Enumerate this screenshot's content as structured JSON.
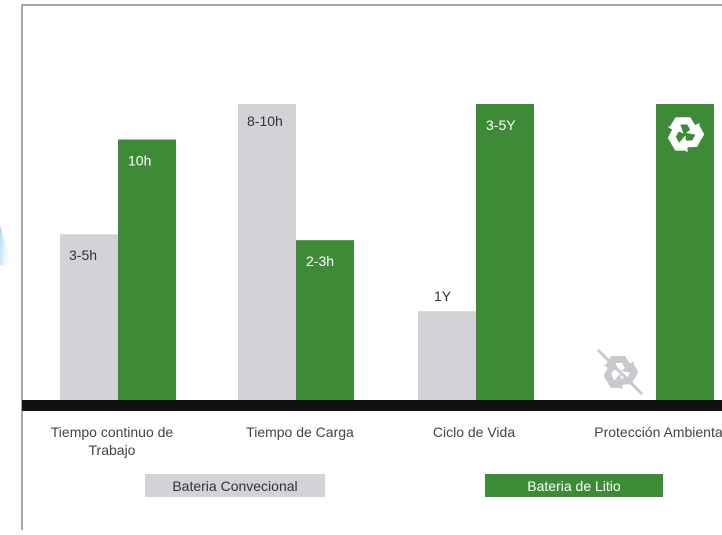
{
  "chart_data": {
    "type": "bar",
    "categories": [
      [
        "Tiempo continuo de",
        "Trabajo"
      ],
      [
        "Tiempo de Carga"
      ],
      [
        "Ciclo de Vida"
      ],
      [
        "Protección Ambiental"
      ]
    ],
    "series": [
      {
        "name": "Bateria Convecional",
        "color": "#d3d3d7",
        "levels": [
          0.56,
          1.0,
          0.3,
          0
        ],
        "labels": [
          "3-5h",
          "8-10h",
          "1Y",
          ""
        ],
        "icon": "recycle-crossed-icon"
      },
      {
        "name": "Bateria de Litio",
        "color": "#3d8b37",
        "levels": [
          0.88,
          0.54,
          1.0,
          1.0
        ],
        "labels": [
          "10h",
          "2-3h",
          "3-5Y",
          ""
        ],
        "icon": "recycle-icon"
      }
    ],
    "legend": "bottom",
    "grid": false
  }
}
